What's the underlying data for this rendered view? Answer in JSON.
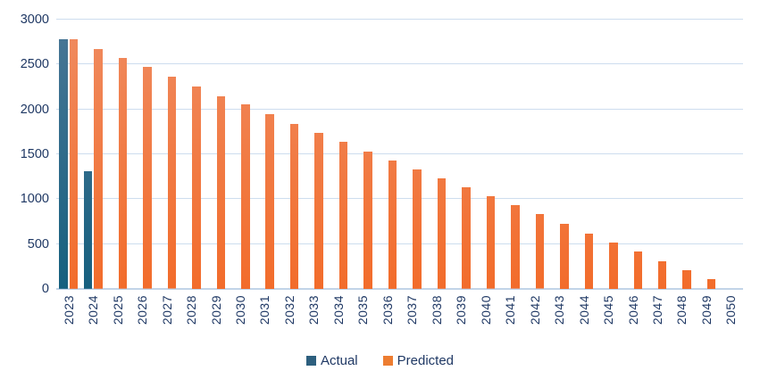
{
  "chart_data": {
    "type": "bar",
    "title": "",
    "xlabel": "",
    "ylabel": "",
    "categories": [
      "2023",
      "2024",
      "2025",
      "2026",
      "2027",
      "2028",
      "2029",
      "2030",
      "2031",
      "2032",
      "2033",
      "2034",
      "2035",
      "2036",
      "2037",
      "2038",
      "2039",
      "2040",
      "2041",
      "2042",
      "2043",
      "2044",
      "2045",
      "2046",
      "2047",
      "2048",
      "2049",
      "2050"
    ],
    "series": [
      {
        "name": "Actual",
        "legend_color": "#2D5F7E",
        "gradient_top": "#4A7796",
        "gradient_bottom": "#16607F",
        "values": [
          2780,
          1310,
          null,
          null,
          null,
          null,
          null,
          null,
          null,
          null,
          null,
          null,
          null,
          null,
          null,
          null,
          null,
          null,
          null,
          null,
          null,
          null,
          null,
          null,
          null,
          null,
          null,
          null
        ]
      },
      {
        "name": "Predicted",
        "legend_color": "#ED7D31",
        "gradient_top": "#F08B60",
        "gradient_bottom": "#F26C2B",
        "values": [
          2780,
          2670,
          2570,
          2470,
          2360,
          2260,
          2150,
          2060,
          1950,
          1840,
          1740,
          1640,
          1530,
          1430,
          1330,
          1230,
          1130,
          1030,
          930,
          830,
          730,
          620,
          520,
          420,
          310,
          210,
          110,
          0
        ]
      }
    ],
    "ylim": [
      0,
      3000
    ],
    "yticks": [
      0,
      500,
      1000,
      1500,
      2000,
      2500,
      3000
    ],
    "grid": true,
    "legend_position": "bottom",
    "colors": {
      "axis_text": "#1F3864",
      "gridline": "#CDDDEE",
      "baseline": "#C2D4E8",
      "background": "#FFFFFF"
    }
  }
}
